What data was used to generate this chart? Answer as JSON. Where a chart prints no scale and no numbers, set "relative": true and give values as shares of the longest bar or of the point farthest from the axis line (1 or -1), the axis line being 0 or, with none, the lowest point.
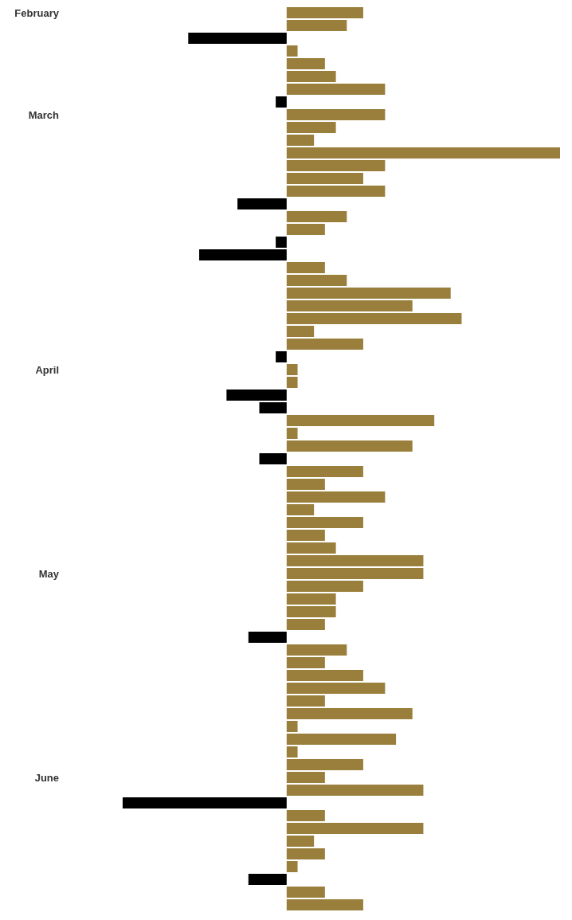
{
  "chart_data": {
    "type": "bar",
    "orientation": "horizontal",
    "relative": true,
    "categories": [
      "February",
      null,
      null,
      null,
      null,
      null,
      null,
      null,
      "March",
      null,
      null,
      null,
      null,
      null,
      null,
      null,
      null,
      null,
      null,
      null,
      null,
      null,
      null,
      null,
      null,
      null,
      null,
      null,
      "April",
      null,
      null,
      null,
      null,
      null,
      null,
      null,
      null,
      null,
      null,
      null,
      null,
      null,
      null,
      null,
      "May",
      null,
      null,
      null,
      null,
      null,
      null,
      null,
      null,
      null,
      null,
      null,
      null,
      null,
      null,
      null,
      "June",
      null,
      null,
      null,
      null,
      null,
      null,
      null,
      null,
      null,
      null
    ],
    "values": [
      0.28,
      0.22,
      -0.36,
      0.04,
      0.14,
      0.18,
      0.36,
      -0.04,
      0.36,
      0.18,
      0.1,
      1,
      0.36,
      0.28,
      0.36,
      -0.18,
      0.22,
      0.14,
      -0.04,
      -0.32,
      0.14,
      0.22,
      0.6,
      0.46,
      0.64,
      0.1,
      0.28,
      -0.04,
      0.04,
      0.04,
      -0.22,
      -0.1,
      0.54,
      0.04,
      0.46,
      -0.1,
      0.28,
      0.14,
      0.36,
      0.1,
      0.28,
      0.14,
      0.18,
      0.5,
      0.5,
      0.28,
      0.18,
      0.18,
      0.14,
      -0.14,
      0.22,
      0.14,
      0.28,
      0.36,
      0.14,
      0.46,
      0.04,
      0.4,
      0.04,
      0.28,
      0.14,
      0.5,
      -0.6,
      0.14,
      0.5,
      0.1,
      0.14,
      0.04,
      -0.14,
      0.14,
      0.28
    ],
    "colors": [
      "#9a7f3c",
      "#9a7f3c",
      "#000000",
      "#9a7f3c",
      "#9a7f3c",
      "#9a7f3c",
      "#9a7f3c",
      "#000000",
      "#9a7f3c",
      "#9a7f3c",
      "#9a7f3c",
      "#9a7f3c",
      "#9a7f3c",
      "#9a7f3c",
      "#9a7f3c",
      "#000000",
      "#9a7f3c",
      "#9a7f3c",
      "#000000",
      "#000000",
      "#9a7f3c",
      "#9a7f3c",
      "#9a7f3c",
      "#9a7f3c",
      "#9a7f3c",
      "#9a7f3c",
      "#9a7f3c",
      "#000000",
      "#9a7f3c",
      "#9a7f3c",
      "#000000",
      "#000000",
      "#9a7f3c",
      "#9a7f3c",
      "#9a7f3c",
      "#000000",
      "#9a7f3c",
      "#9a7f3c",
      "#9a7f3c",
      "#9a7f3c",
      "#9a7f3c",
      "#9a7f3c",
      "#9a7f3c",
      "#9a7f3c",
      "#9a7f3c",
      "#9a7f3c",
      "#9a7f3c",
      "#9a7f3c",
      "#9a7f3c",
      "#000000",
      "#9a7f3c",
      "#9a7f3c",
      "#9a7f3c",
      "#9a7f3c",
      "#9a7f3c",
      "#9a7f3c",
      "#9a7f3c",
      "#9a7f3c",
      "#9a7f3c",
      "#9a7f3c",
      "#9a7f3c",
      "#9a7f3c",
      "#000000",
      "#9a7f3c",
      "#9a7f3c",
      "#9a7f3c",
      "#9a7f3c",
      "#9a7f3c",
      "#000000",
      "#9a7f3c",
      "#9a7f3c"
    ]
  }
}
